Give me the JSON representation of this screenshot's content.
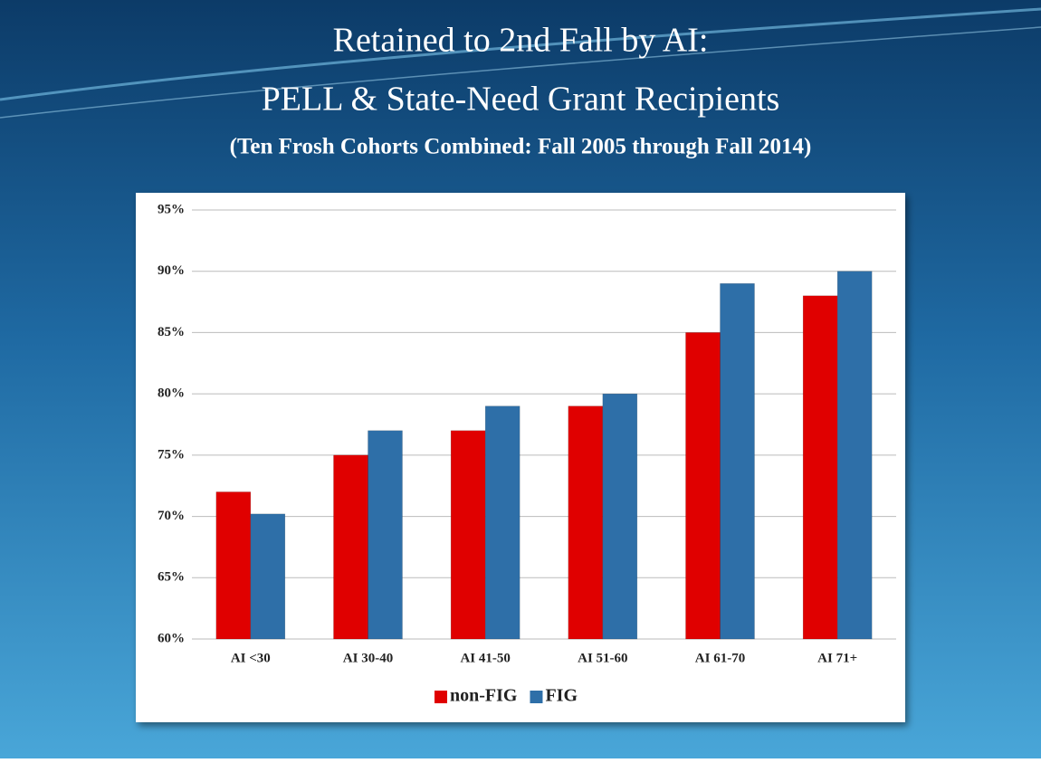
{
  "chart_data": {
    "type": "bar",
    "title": [
      "Retained to 2nd Fall by AI:",
      "PELL & State-Need Grant Recipients"
    ],
    "subtitle": "(Ten Frosh Cohorts Combined: Fall 2005 through Fall 2014)",
    "categories": [
      "AI <30",
      "AI 30-40",
      "AI 41-50",
      "AI 51-60",
      "AI 61-70",
      "AI 71+"
    ],
    "series": [
      {
        "name": "non-FIG",
        "color": "#e00000",
        "values": [
          72,
          75,
          77,
          79,
          85,
          88
        ]
      },
      {
        "name": "FIG",
        "color": "#2e6fa8",
        "values": [
          70.2,
          77,
          79,
          80,
          89,
          90
        ]
      }
    ],
    "ylim": [
      60,
      95
    ],
    "yticks": [
      {
        "value": 60,
        "label": "60%"
      },
      {
        "value": 65,
        "label": "65%"
      },
      {
        "value": 70,
        "label": "70%"
      },
      {
        "value": 75,
        "label": "75%"
      },
      {
        "value": 80,
        "label": "80%"
      },
      {
        "value": 85,
        "label": "85%"
      },
      {
        "value": 90,
        "label": "90%"
      },
      {
        "value": 95,
        "label": "95%"
      }
    ],
    "grid": true,
    "legend": "bottom"
  }
}
